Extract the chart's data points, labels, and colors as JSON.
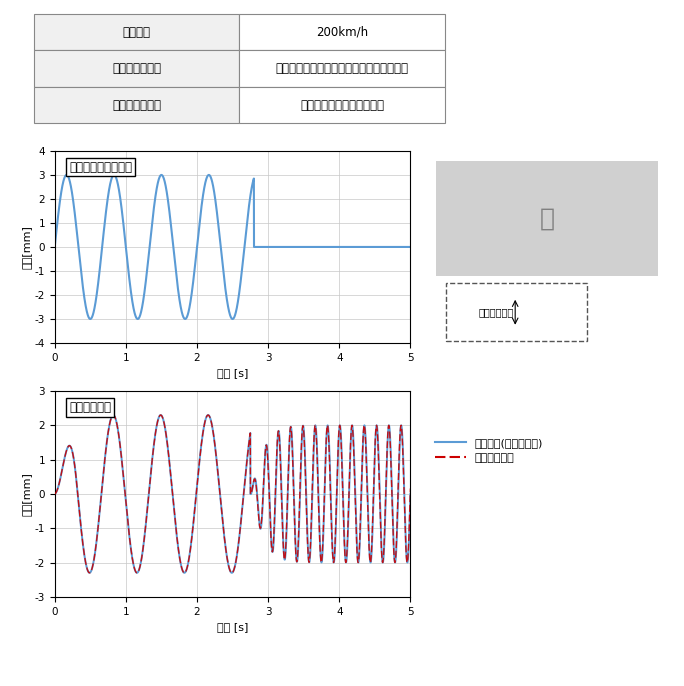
{
  "table": {
    "rows": [
      [
        "走行速度",
        "200km/h"
      ],
      [
        "アクチュエータ",
        "軸箔前後支持アクチュエータ（下図参照）"
      ],
      [
        "模擬対象モデル",
        "ばね，ダンパ並列（ゴム）"
      ]
    ]
  },
  "plot1": {
    "title": "通り不整（先頭軸）",
    "xlabel": "時刻 [s]",
    "ylabel": "変位[mm]",
    "xlim": [
      0,
      5
    ],
    "ylim": [
      -4,
      4
    ],
    "xticks": [
      0,
      1,
      2,
      3,
      4,
      5
    ],
    "yticks": [
      -4,
      -3,
      -2,
      -1,
      0,
      1,
      2,
      3,
      4
    ],
    "line_color": "#5B9BD5",
    "sine_amplitude": 3.0,
    "sine_freq": 1.5,
    "sine_end": 2.8,
    "flat_value": 0.0
  },
  "plot2": {
    "title": "台車左右変位",
    "xlabel": "時刻 [s]",
    "ylabel": "変位[mm]",
    "xlim": [
      0,
      5
    ],
    "ylim": [
      -3,
      3
    ],
    "xticks": [
      0,
      1,
      2,
      3,
      4,
      5
    ],
    "yticks": [
      -3,
      -2,
      -1,
      0,
      1,
      2,
      3
    ],
    "color_ideal": "#5B9BD5",
    "color_rapid": "#CC0000",
    "legend_ideal": "模擬対象(理想の応答)",
    "legend_rapid": "ラピッド台車"
  },
  "background_color": "#FFFFFF",
  "grid_color": "#C8C8C8"
}
